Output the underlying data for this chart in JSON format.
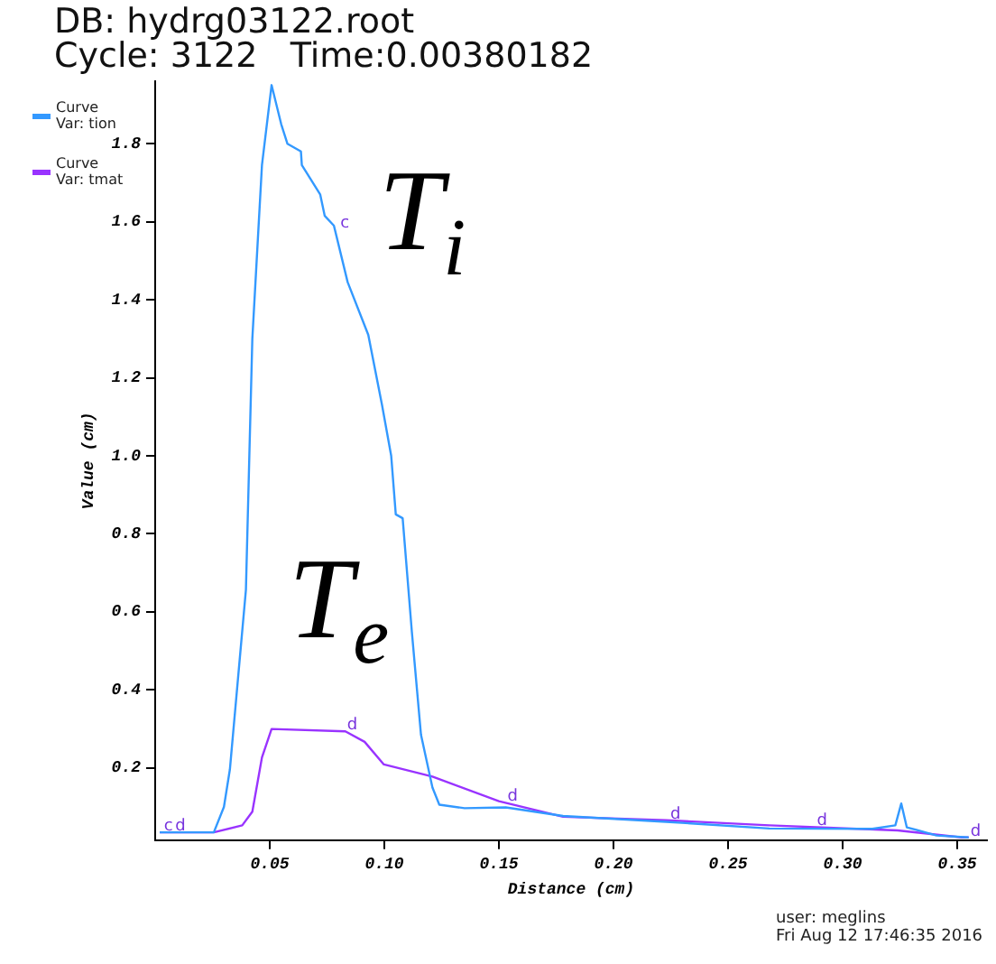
{
  "chart_data": {
    "type": "line",
    "title": "DB: hydrg03122.root",
    "subtitle": "Cycle: 3122   Time:0.00380182",
    "xlabel": "Distance (cm)",
    "ylabel": "Value (cm)",
    "xlim": [
      0,
      0.363
    ],
    "ylim": [
      0.015,
      1.96
    ],
    "xticks": [
      {
        "value": 0.05,
        "label": "0.05"
      },
      {
        "value": 0.1,
        "label": "0.10"
      },
      {
        "value": 0.15,
        "label": "0.15"
      },
      {
        "value": 0.2,
        "label": "0.20"
      },
      {
        "value": 0.25,
        "label": "0.25"
      },
      {
        "value": 0.3,
        "label": "0.30"
      },
      {
        "value": 0.35,
        "label": "0.35"
      }
    ],
    "yticks": [
      {
        "value": 0.2,
        "label": "0.2"
      },
      {
        "value": 0.4,
        "label": "0.4"
      },
      {
        "value": 0.6,
        "label": "0.6"
      },
      {
        "value": 0.8,
        "label": "0.8"
      },
      {
        "value": 1,
        "label": "1.0"
      },
      {
        "value": 1.2,
        "label": "1.2"
      },
      {
        "value": 1.4,
        "label": "1.4"
      },
      {
        "value": 1.6,
        "label": "1.6"
      },
      {
        "value": 1.8,
        "label": "1.8"
      }
    ],
    "grid": false,
    "legend": "top left",
    "marker": "none",
    "line_style": "solid",
    "series": [
      {
        "name": "Curve\nVar: tion",
        "color": "#3399ff",
        "x": [
          0.002,
          0.0256,
          0.03,
          0.0326,
          0.0396,
          0.0424,
          0.0466,
          0.0508,
          0.055,
          0.0577,
          0.0636,
          0.064,
          0.072,
          0.074,
          0.078,
          0.084,
          0.093,
          0.099,
          0.103,
          0.105,
          0.108,
          0.112,
          0.116,
          0.121,
          0.124,
          0.135,
          0.153,
          0.178,
          0.223,
          0.268,
          0.313,
          0.323,
          0.3256,
          0.328,
          0.341,
          0.355
        ],
        "values": [
          0.035,
          0.035,
          0.1,
          0.196,
          0.657,
          1.3,
          1.745,
          1.95,
          1.85,
          1.8,
          1.78,
          1.745,
          1.67,
          1.615,
          1.59,
          1.445,
          1.31,
          1.13,
          1.0,
          0.85,
          0.84,
          0.55,
          0.285,
          0.15,
          0.106,
          0.097,
          0.099,
          0.077,
          0.062,
          0.045,
          0.044,
          0.053,
          0.109,
          0.048,
          0.027,
          0.022
        ]
      },
      {
        "name": "Curve\nVar: tmat",
        "color": "#9933ff",
        "x": [
          0.002,
          0.0256,
          0.038,
          0.0424,
          0.0466,
          0.0508,
          0.083,
          0.0914,
          0.0998,
          0.121,
          0.15,
          0.178,
          0.223,
          0.268,
          0.324,
          0.352,
          0.355
        ],
        "values": [
          0.035,
          0.035,
          0.053,
          0.088,
          0.227,
          0.3,
          0.294,
          0.267,
          0.209,
          0.178,
          0.115,
          0.075,
          0.066,
          0.053,
          0.04,
          0.022,
          0.022
        ]
      }
    ],
    "annotations": [
      "T$_{i}$",
      "T$_{e}$",
      {
        "text": "c",
        "x": 0.003,
        "y": 0.035
      },
      {
        "text": "c",
        "x": 0.08,
        "y": 1.58
      },
      {
        "text": "d",
        "x": 0.008,
        "y": 0.035
      },
      {
        "text": "d",
        "x": 0.083,
        "y": 0.294
      },
      {
        "text": "d",
        "x": 0.153,
        "y": 0.112
      },
      {
        "text": "d",
        "x": 0.224,
        "y": 0.066
      },
      {
        "text": "d",
        "x": 0.288,
        "y": 0.05
      },
      {
        "text": "d",
        "x": 0.355,
        "y": 0.022
      },
      "user: meglins\nFri Aug 12 17:46:35 2016"
    ]
  }
}
